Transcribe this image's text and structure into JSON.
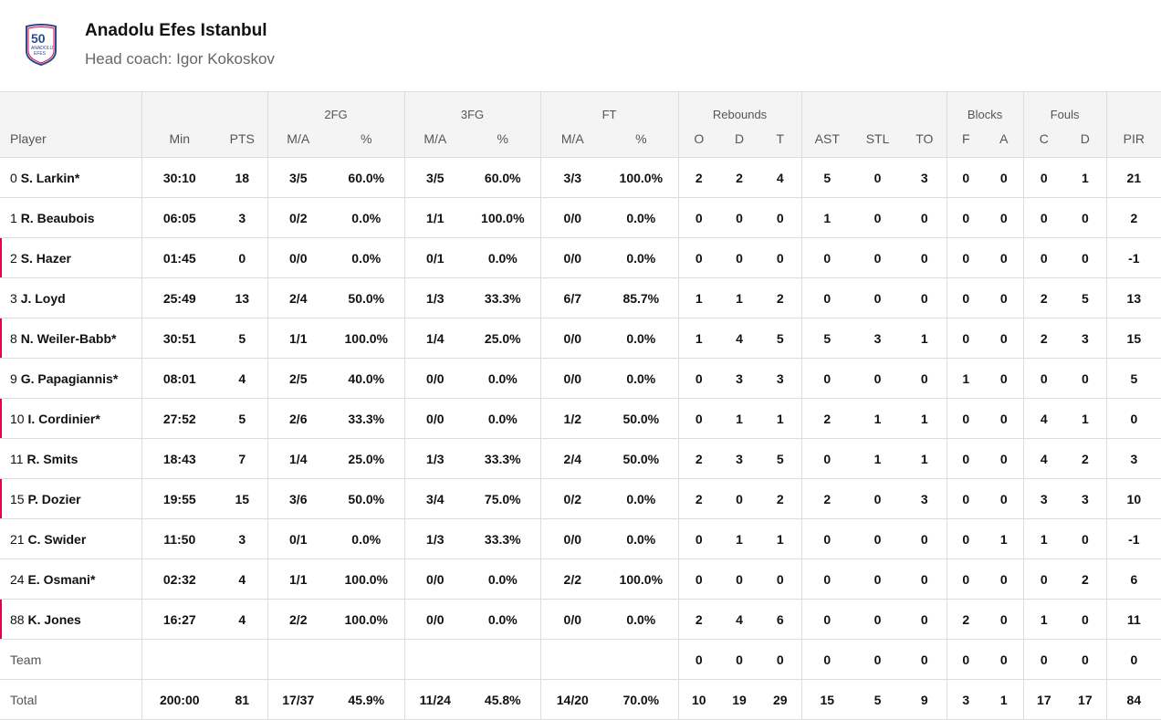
{
  "team": {
    "name": "Anadolu Efes Istanbul",
    "coach": "Head coach: Igor Kokoskov",
    "logo_text": "50 ANADOLU EFES 1976"
  },
  "groups": [
    "2FG",
    "3FG",
    "FT",
    "Rebounds",
    "Blocks",
    "Fouls"
  ],
  "columns": [
    "Player",
    "Min",
    "PTS",
    "M/A",
    "%",
    "M/A",
    "%",
    "M/A",
    "%",
    "O",
    "D",
    "T",
    "AST",
    "STL",
    "TO",
    "F",
    "A",
    "C",
    "D",
    "PIR"
  ],
  "players": [
    {
      "num": "0",
      "name": "S. Larkin*",
      "highlight": false,
      "stats": [
        "30:10",
        "18",
        "3/5",
        "60.0%",
        "3/5",
        "60.0%",
        "3/3",
        "100.0%",
        "2",
        "2",
        "4",
        "5",
        "0",
        "3",
        "0",
        "0",
        "0",
        "1",
        "21"
      ]
    },
    {
      "num": "1",
      "name": "R. Beaubois",
      "highlight": false,
      "stats": [
        "06:05",
        "3",
        "0/2",
        "0.0%",
        "1/1",
        "100.0%",
        "0/0",
        "0.0%",
        "0",
        "0",
        "0",
        "1",
        "0",
        "0",
        "0",
        "0",
        "0",
        "0",
        "2"
      ]
    },
    {
      "num": "2",
      "name": "S. Hazer",
      "highlight": true,
      "stats": [
        "01:45",
        "0",
        "0/0",
        "0.0%",
        "0/1",
        "0.0%",
        "0/0",
        "0.0%",
        "0",
        "0",
        "0",
        "0",
        "0",
        "0",
        "0",
        "0",
        "0",
        "0",
        "-1"
      ]
    },
    {
      "num": "3",
      "name": "J. Loyd",
      "highlight": false,
      "stats": [
        "25:49",
        "13",
        "2/4",
        "50.0%",
        "1/3",
        "33.3%",
        "6/7",
        "85.7%",
        "1",
        "1",
        "2",
        "0",
        "0",
        "0",
        "0",
        "0",
        "2",
        "5",
        "13"
      ]
    },
    {
      "num": "8",
      "name": "N. Weiler-Babb*",
      "highlight": true,
      "stats": [
        "30:51",
        "5",
        "1/1",
        "100.0%",
        "1/4",
        "25.0%",
        "0/0",
        "0.0%",
        "1",
        "4",
        "5",
        "5",
        "3",
        "1",
        "0",
        "0",
        "2",
        "3",
        "15"
      ]
    },
    {
      "num": "9",
      "name": "G. Papagiannis*",
      "highlight": false,
      "stats": [
        "08:01",
        "4",
        "2/5",
        "40.0%",
        "0/0",
        "0.0%",
        "0/0",
        "0.0%",
        "0",
        "3",
        "3",
        "0",
        "0",
        "0",
        "1",
        "0",
        "0",
        "0",
        "5"
      ]
    },
    {
      "num": "10",
      "name": "I. Cordinier*",
      "highlight": true,
      "stats": [
        "27:52",
        "5",
        "2/6",
        "33.3%",
        "0/0",
        "0.0%",
        "1/2",
        "50.0%",
        "0",
        "1",
        "1",
        "2",
        "1",
        "1",
        "0",
        "0",
        "4",
        "1",
        "0"
      ]
    },
    {
      "num": "11",
      "name": "R. Smits",
      "highlight": false,
      "stats": [
        "18:43",
        "7",
        "1/4",
        "25.0%",
        "1/3",
        "33.3%",
        "2/4",
        "50.0%",
        "2",
        "3",
        "5",
        "0",
        "1",
        "1",
        "0",
        "0",
        "4",
        "2",
        "3"
      ]
    },
    {
      "num": "15",
      "name": "P. Dozier",
      "highlight": true,
      "stats": [
        "19:55",
        "15",
        "3/6",
        "50.0%",
        "3/4",
        "75.0%",
        "0/2",
        "0.0%",
        "2",
        "0",
        "2",
        "2",
        "0",
        "3",
        "0",
        "0",
        "3",
        "3",
        "10"
      ]
    },
    {
      "num": "21",
      "name": "C. Swider",
      "highlight": false,
      "stats": [
        "11:50",
        "3",
        "0/1",
        "0.0%",
        "1/3",
        "33.3%",
        "0/0",
        "0.0%",
        "0",
        "1",
        "1",
        "0",
        "0",
        "0",
        "0",
        "1",
        "1",
        "0",
        "-1"
      ]
    },
    {
      "num": "24",
      "name": "E. Osmani*",
      "highlight": false,
      "stats": [
        "02:32",
        "4",
        "1/1",
        "100.0%",
        "0/0",
        "0.0%",
        "2/2",
        "100.0%",
        "0",
        "0",
        "0",
        "0",
        "0",
        "0",
        "0",
        "0",
        "0",
        "2",
        "6"
      ]
    },
    {
      "num": "88",
      "name": "K. Jones",
      "highlight": true,
      "stats": [
        "16:27",
        "4",
        "2/2",
        "100.0%",
        "0/0",
        "0.0%",
        "0/0",
        "0.0%",
        "2",
        "4",
        "6",
        "0",
        "0",
        "0",
        "2",
        "0",
        "1",
        "0",
        "11"
      ]
    }
  ],
  "team_row": {
    "label": "Team",
    "stats": [
      "",
      "",
      "",
      "",
      "",
      "",
      "",
      "",
      "0",
      "0",
      "0",
      "0",
      "0",
      "0",
      "0",
      "0",
      "0",
      "0",
      "0"
    ]
  },
  "total_row": {
    "label": "Total",
    "stats": [
      "200:00",
      "81",
      "17/37",
      "45.9%",
      "11/24",
      "45.8%",
      "14/20",
      "70.0%",
      "10",
      "19",
      "29",
      "15",
      "5",
      "9",
      "3",
      "1",
      "17",
      "17",
      "84"
    ]
  },
  "colors": {
    "accent": "#e4004f",
    "header_bg": "#f4f4f4"
  }
}
